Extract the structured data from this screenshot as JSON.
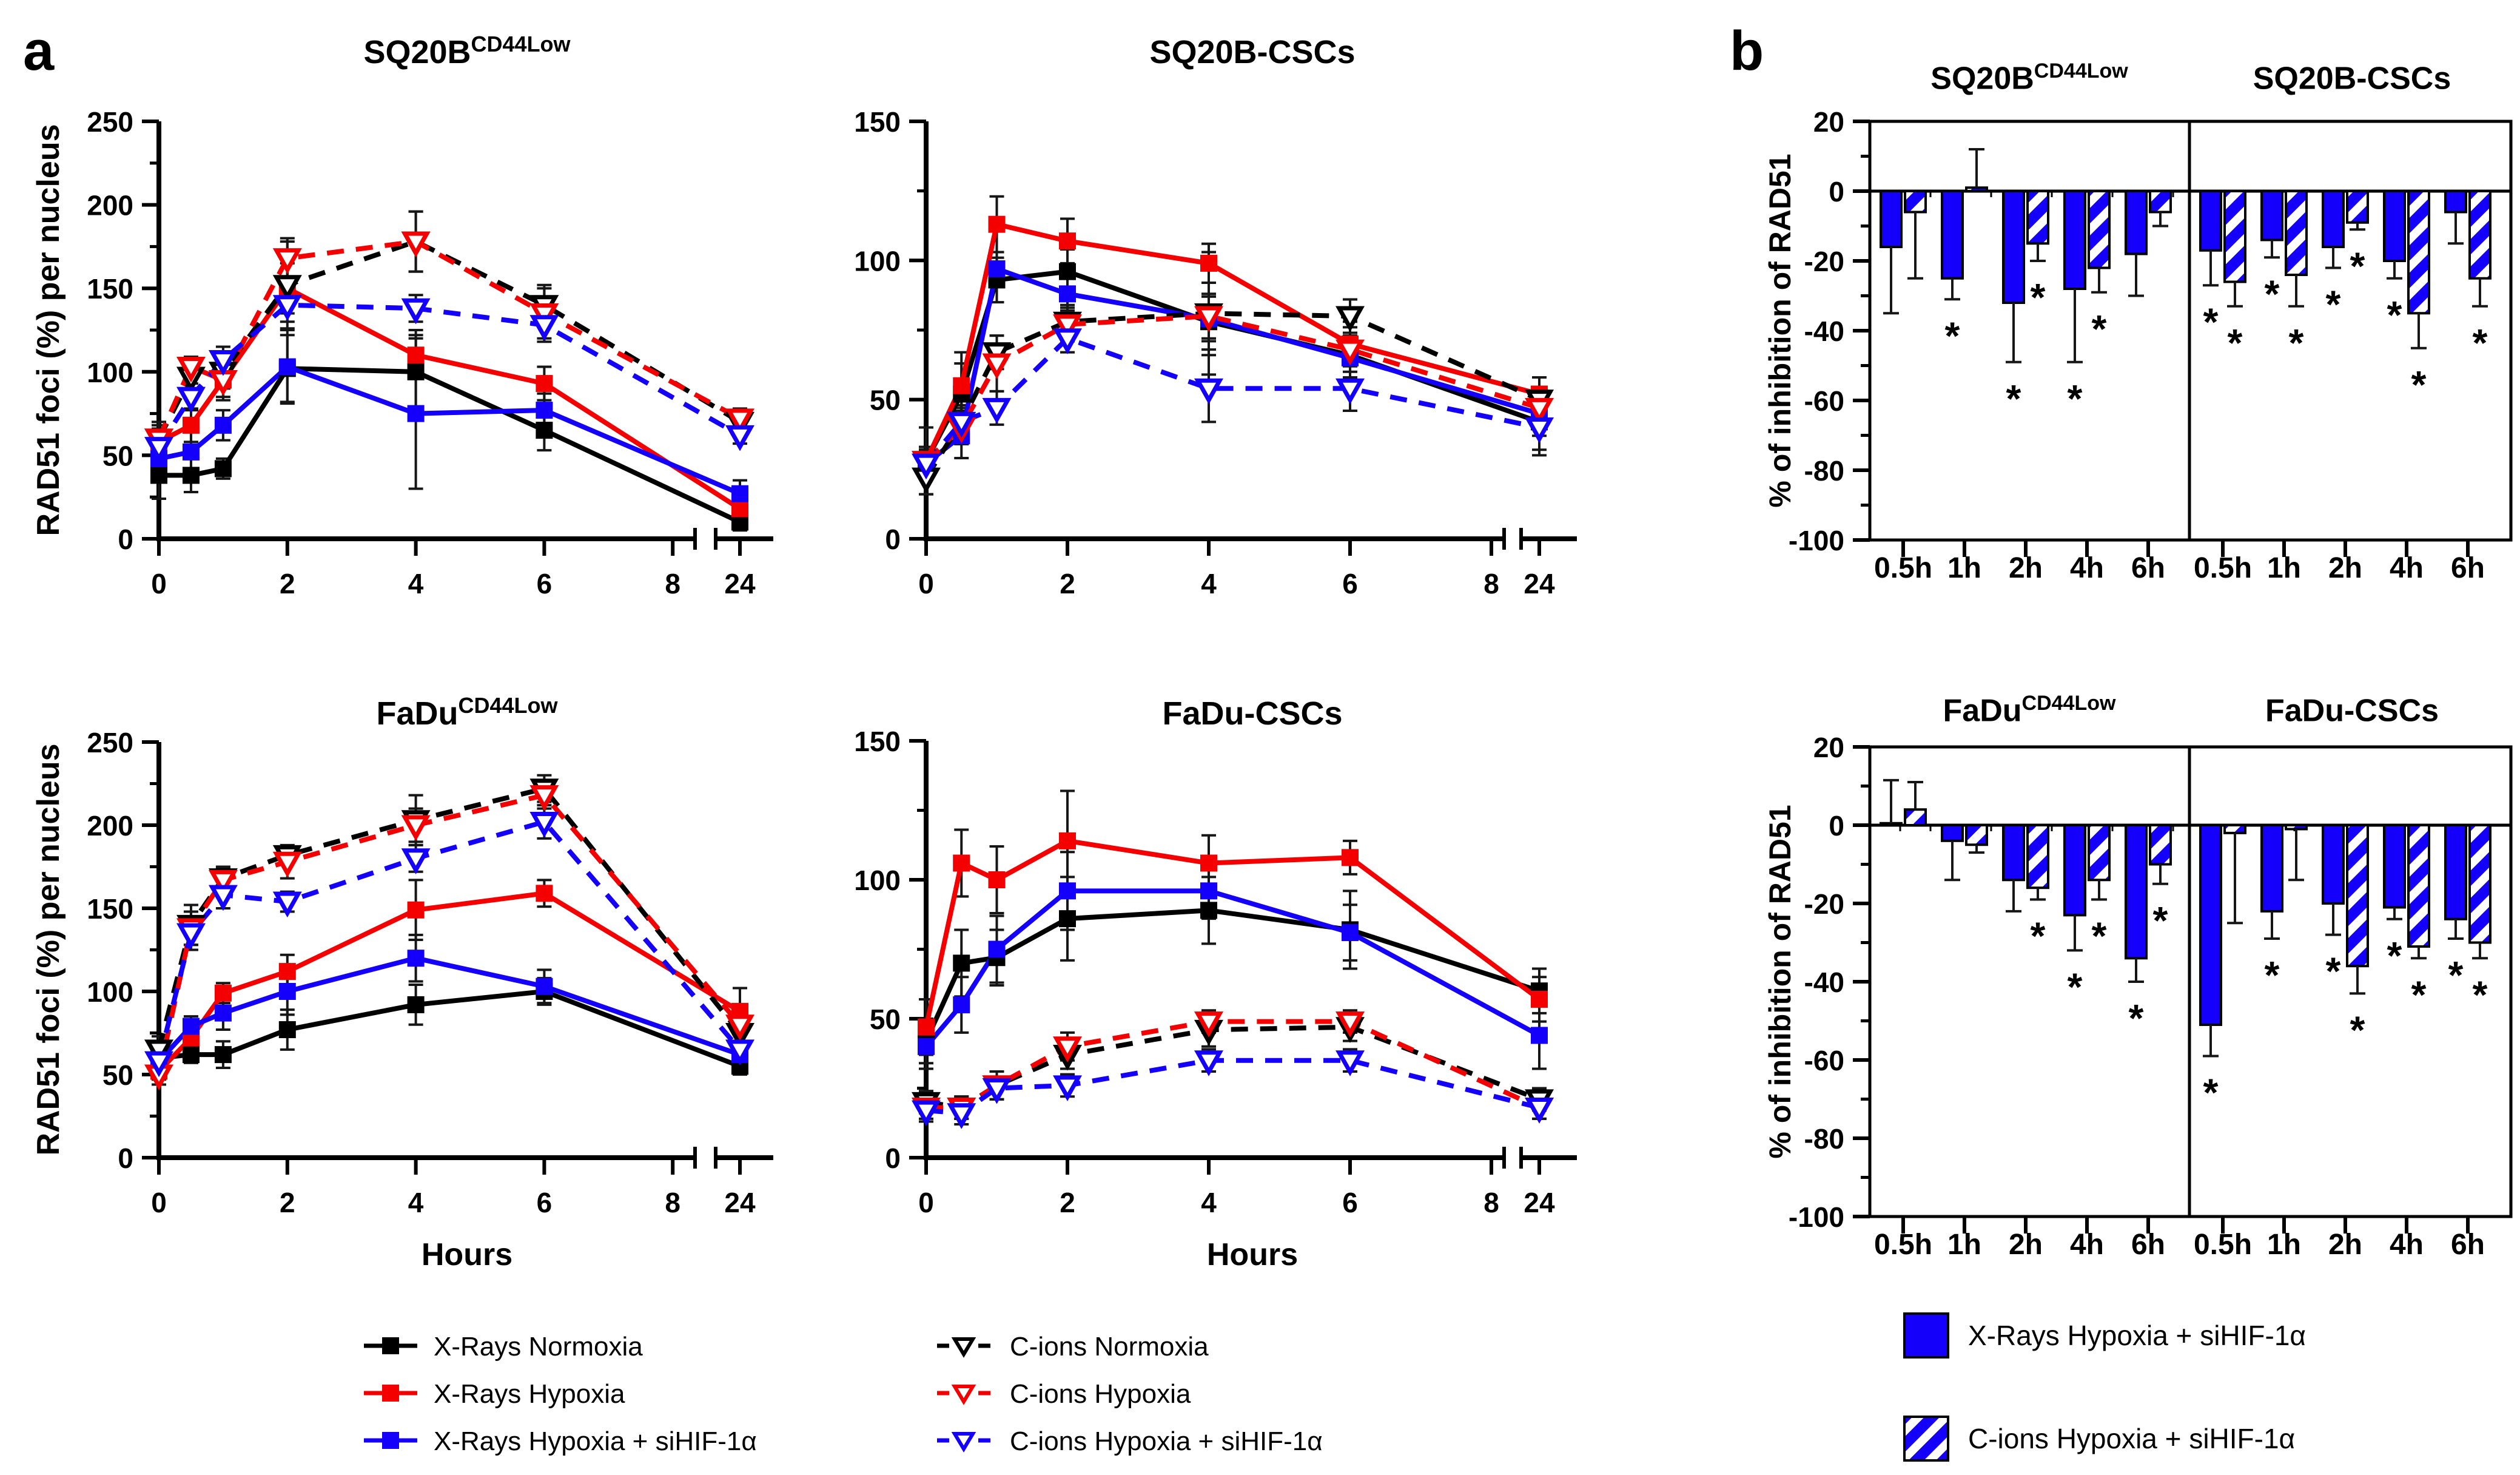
{
  "panels": {
    "a": {
      "label": "a"
    },
    "b": {
      "label": "b"
    }
  },
  "colors": {
    "black": "#000000",
    "red": "#f40000",
    "blue": "#1400fa"
  },
  "sig_marker": "*",
  "legend_a": {
    "items": [
      {
        "label": "X-Rays Normoxia",
        "color": "black",
        "dash": false,
        "marker": "square"
      },
      {
        "label": "X-Rays Hypoxia",
        "color": "red",
        "dash": false,
        "marker": "square"
      },
      {
        "label": "X-Rays Hypoxia + siHIF-1α",
        "color": "blue",
        "dash": false,
        "marker": "square"
      },
      {
        "label": "C-ions Normoxia",
        "color": "black",
        "dash": true,
        "marker": "triangle"
      },
      {
        "label": "C-ions Hypoxia",
        "color": "red",
        "dash": true,
        "marker": "triangle"
      },
      {
        "label": "C-ions Hypoxia + siHIF-1α",
        "color": "blue",
        "dash": true,
        "marker": "triangle"
      }
    ]
  },
  "legend_b": {
    "items": [
      {
        "label": "X-Rays Hypoxia + siHIF-1α",
        "pattern": "solid"
      },
      {
        "label": "C-ions Hypoxia + siHIF-1α",
        "pattern": "hatched"
      }
    ]
  },
  "chart_data": [
    {
      "type": "line",
      "title": "SQ20B",
      "title_sup": "CD44Low",
      "ylabel": "RAD51 foci (%) per nucleus",
      "xlabel": "",
      "y_min": 0,
      "y_max": 250,
      "y_ticks": [
        0,
        50,
        100,
        150,
        200,
        250
      ],
      "x_ticks": [
        0,
        2,
        4,
        6,
        8,
        24
      ],
      "x": [
        0,
        0.5,
        1,
        2,
        4,
        6,
        24
      ],
      "series": [
        {
          "name": "X-Rays Normoxia",
          "color": "black",
          "dash": false,
          "marker": "square",
          "values": [
            38,
            38,
            42,
            102,
            100,
            65,
            10
          ],
          "errors": [
            14,
            10,
            6,
            20,
            25,
            12,
            5
          ]
        },
        {
          "name": "X-Rays Hypoxia",
          "color": "red",
          "dash": false,
          "marker": "square",
          "values": [
            58,
            68,
            95,
            150,
            110,
            93,
            18
          ],
          "errors": [
            8,
            10,
            12,
            15,
            12,
            10,
            6
          ]
        },
        {
          "name": "X-Rays Hypoxia + siHIF-1α",
          "color": "blue",
          "dash": false,
          "marker": "square",
          "values": [
            48,
            52,
            68,
            103,
            75,
            77,
            27
          ],
          "errors": [
            6,
            12,
            9,
            22,
            45,
            10,
            8
          ]
        },
        {
          "name": "C-ions Normoxia",
          "color": "black",
          "dash": true,
          "marker": "triangle",
          "values": [
            60,
            97,
            100,
            152,
            178,
            140,
            70
          ],
          "errors": [
            10,
            8,
            10,
            26,
            18,
            12,
            6
          ]
        },
        {
          "name": "C-ions Hypoxia",
          "color": "red",
          "dash": true,
          "marker": "triangle",
          "values": [
            60,
            103,
            95,
            168,
            178,
            135,
            72
          ],
          "errors": [
            8,
            6,
            10,
            12,
            18,
            15,
            6
          ]
        },
        {
          "name": "C-ions Hypoxia + siHIF-1α",
          "color": "blue",
          "dash": true,
          "marker": "triangle",
          "values": [
            55,
            85,
            107,
            140,
            138,
            128,
            62
          ],
          "errors": [
            8,
            8,
            8,
            10,
            8,
            10,
            5
          ]
        }
      ]
    },
    {
      "type": "line",
      "title": "SQ20B-CSCs",
      "title_sup": "",
      "ylabel": "RAD51 foci (%) per nucleus",
      "xlabel": "",
      "y_min": 0,
      "y_max": 150,
      "y_ticks": [
        0,
        50,
        100,
        150
      ],
      "x_ticks": [
        0,
        2,
        4,
        6,
        8,
        24
      ],
      "x": [
        0,
        0.5,
        1,
        2,
        4,
        6,
        24
      ],
      "series": [
        {
          "name": "X-Rays Normoxia",
          "color": "black",
          "dash": false,
          "marker": "square",
          "values": [
            28,
            52,
            93,
            96,
            78,
            66,
            42
          ],
          "errors": [
            12,
            15,
            8,
            8,
            10,
            8,
            10
          ]
        },
        {
          "name": "X-Rays Hypoxia",
          "color": "red",
          "dash": false,
          "marker": "square",
          "values": [
            28,
            55,
            113,
            107,
            99,
            70,
            52
          ],
          "errors": [
            5,
            8,
            10,
            8,
            7,
            8,
            6
          ]
        },
        {
          "name": "X-Rays Hypoxia + siHIF-1α",
          "color": "blue",
          "dash": false,
          "marker": "square",
          "values": [
            27,
            37,
            97,
            88,
            79,
            65,
            45
          ],
          "errors": [
            5,
            8,
            6,
            6,
            8,
            8,
            8
          ]
        },
        {
          "name": "C-ions Normoxia",
          "color": "black",
          "dash": true,
          "marker": "triangle",
          "values": [
            22,
            42,
            67,
            78,
            81,
            80,
            50
          ],
          "errors": [
            6,
            8,
            6,
            6,
            22,
            6,
            8
          ]
        },
        {
          "name": "C-ions Hypoxia",
          "color": "red",
          "dash": true,
          "marker": "triangle",
          "values": [
            28,
            40,
            63,
            77,
            80,
            68,
            47
          ],
          "errors": [
            5,
            6,
            10,
            6,
            8,
            8,
            6
          ]
        },
        {
          "name": "C-ions Hypoxia + siHIF-1α",
          "color": "blue",
          "dash": true,
          "marker": "triangle",
          "values": [
            27,
            42,
            47,
            72,
            54,
            54,
            40
          ],
          "errors": [
            5,
            6,
            6,
            5,
            12,
            8,
            10
          ]
        }
      ]
    },
    {
      "type": "line",
      "title": "FaDu",
      "title_sup": "CD44Low",
      "ylabel": "RAD51 foci (%) per nucleus",
      "xlabel": "Hours",
      "y_min": 0,
      "y_max": 250,
      "y_ticks": [
        0,
        50,
        100,
        150,
        200,
        250
      ],
      "x_ticks": [
        0,
        2,
        4,
        6,
        8,
        24
      ],
      "x": [
        0,
        0.5,
        1,
        2,
        4,
        6,
        24
      ],
      "series": [
        {
          "name": "X-Rays Normoxia",
          "color": "black",
          "dash": false,
          "marker": "square",
          "values": [
            60,
            62,
            62,
            77,
            92,
            100,
            55
          ],
          "errors": [
            10,
            5,
            8,
            12,
            12,
            8,
            5
          ]
        },
        {
          "name": "X-Rays Hypoxia",
          "color": "red",
          "dash": false,
          "marker": "square",
          "values": [
            52,
            72,
            99,
            112,
            149,
            159,
            88
          ],
          "errors": [
            5,
            8,
            6,
            10,
            18,
            8,
            14
          ]
        },
        {
          "name": "X-Rays Hypoxia + siHIF-1α",
          "color": "blue",
          "dash": false,
          "marker": "square",
          "values": [
            58,
            79,
            87,
            100,
            120,
            103,
            62
          ],
          "errors": [
            8,
            6,
            10,
            14,
            14,
            10,
            5
          ]
        },
        {
          "name": "C-ions Normoxia",
          "color": "black",
          "dash": true,
          "marker": "triangle",
          "values": [
            65,
            140,
            168,
            182,
            203,
            222,
            75
          ],
          "errors": [
            8,
            12,
            6,
            5,
            15,
            8,
            6
          ]
        },
        {
          "name": "C-ions Hypoxia",
          "color": "red",
          "dash": true,
          "marker": "triangle",
          "values": [
            50,
            138,
            167,
            178,
            200,
            218,
            80
          ],
          "errors": [
            6,
            10,
            8,
            10,
            10,
            8,
            10
          ]
        },
        {
          "name": "C-ions Hypoxia + siHIF-1α",
          "color": "blue",
          "dash": true,
          "marker": "triangle",
          "values": [
            58,
            135,
            158,
            154,
            180,
            202,
            65
          ],
          "errors": [
            6,
            10,
            8,
            6,
            8,
            10,
            5
          ]
        }
      ]
    },
    {
      "type": "line",
      "title": "FaDu-CSCs",
      "title_sup": "",
      "ylabel": "RAD51 foci (%) per nucleus",
      "xlabel": "Hours",
      "y_min": 0,
      "y_max": 150,
      "y_ticks": [
        0,
        50,
        100,
        150
      ],
      "x_ticks": [
        0,
        2,
        4,
        6,
        8,
        24
      ],
      "x": [
        0,
        0.5,
        1,
        2,
        4,
        6,
        24
      ],
      "series": [
        {
          "name": "X-Rays Normoxia",
          "color": "black",
          "dash": false,
          "marker": "square",
          "values": [
            42,
            70,
            72,
            86,
            89,
            82,
            60
          ],
          "errors": [
            8,
            12,
            10,
            15,
            12,
            14,
            8
          ]
        },
        {
          "name": "X-Rays Hypoxia",
          "color": "red",
          "dash": false,
          "marker": "square",
          "values": [
            47,
            106,
            100,
            114,
            106,
            108,
            57
          ],
          "errors": [
            10,
            12,
            12,
            18,
            10,
            6,
            8
          ]
        },
        {
          "name": "X-Rays Hypoxia + siHIF-1α",
          "color": "blue",
          "dash": false,
          "marker": "square",
          "values": [
            40,
            55,
            75,
            96,
            96,
            81,
            44
          ],
          "errors": [
            8,
            10,
            12,
            14,
            10,
            10,
            12
          ]
        },
        {
          "name": "C-ions Normoxia",
          "color": "black",
          "dash": true,
          "marker": "triangle",
          "values": [
            20,
            18,
            26,
            37,
            46,
            47,
            21
          ],
          "errors": [
            4,
            4,
            5,
            5,
            6,
            5,
            4
          ]
        },
        {
          "name": "C-ions Hypoxia",
          "color": "red",
          "dash": true,
          "marker": "triangle",
          "values": [
            18,
            18,
            26,
            40,
            49,
            49,
            18
          ],
          "errors": [
            4,
            4,
            5,
            5,
            4,
            4,
            4
          ]
        },
        {
          "name": "C-ions Hypoxia + siHIF-1α",
          "color": "blue",
          "dash": true,
          "marker": "triangle",
          "values": [
            17,
            16,
            25,
            26,
            35,
            35,
            18
          ],
          "errors": [
            4,
            4,
            4,
            4,
            4,
            4,
            4
          ]
        }
      ]
    },
    {
      "type": "bar",
      "ylabel": "% of inhibition of RAD51",
      "y_min": -100,
      "y_max": 20,
      "y_ticks": [
        20,
        0,
        -20,
        -40,
        -60,
        -80,
        -100
      ],
      "categories": [
        "0.5h",
        "1h",
        "2h",
        "4h",
        "6h"
      ],
      "groups": [
        {
          "title": "SQ20B",
          "title_sup": "CD44Low",
          "series": [
            {
              "name": "X-Rays Hypoxia + siHIF-1α",
              "pattern": "solid",
              "values": [
                -16,
                -25,
                -32,
                -28,
                -18
              ],
              "errors": [
                19,
                6,
                17,
                21,
                12
              ],
              "sig": [
                0,
                1,
                1,
                1,
                0
              ]
            },
            {
              "name": "C-ions Hypoxia + siHIF-1α",
              "pattern": "hatched",
              "values": [
                -6,
                1,
                -15,
                -22,
                -6
              ],
              "errors": [
                19,
                11,
                5,
                7,
                4
              ],
              "sig": [
                0,
                0,
                1,
                1,
                0
              ]
            }
          ]
        },
        {
          "title": "SQ20B-CSCs",
          "title_sup": "",
          "series": [
            {
              "name": "X-Rays Hypoxia + siHIF-1α",
              "pattern": "solid",
              "values": [
                -17,
                -14,
                -16,
                -20,
                -6
              ],
              "errors": [
                10,
                5,
                6,
                5,
                9
              ],
              "sig": [
                1,
                1,
                1,
                1,
                0
              ]
            },
            {
              "name": "C-ions Hypoxia + siHIF-1α",
              "pattern": "hatched",
              "values": [
                -26,
                -24,
                -9,
                -35,
                -25
              ],
              "errors": [
                7,
                9,
                2,
                10,
                8
              ],
              "sig": [
                1,
                1,
                1,
                1,
                1
              ]
            }
          ]
        }
      ]
    },
    {
      "type": "bar",
      "ylabel": "% of inhibition of RAD51",
      "y_min": -100,
      "y_max": 20,
      "y_ticks": [
        20,
        0,
        -20,
        -40,
        -60,
        -80,
        -100
      ],
      "categories": [
        "0.5h",
        "1h",
        "2h",
        "4h",
        "6h"
      ],
      "groups": [
        {
          "title": "FaDu",
          "title_sup": "CD44Low",
          "series": [
            {
              "name": "X-Rays Hypoxia + siHIF-1α",
              "pattern": "solid",
              "values": [
                0.5,
                -4,
                -14,
                -23,
                -34
              ],
              "errors": [
                11,
                10,
                8,
                9,
                6
              ],
              "sig": [
                0,
                0,
                0,
                1,
                1
              ]
            },
            {
              "name": "C-ions Hypoxia + siHIF-1α",
              "pattern": "hatched",
              "values": [
                4,
                -5,
                -16,
                -14,
                -10
              ],
              "errors": [
                7,
                2,
                3,
                5,
                5
              ],
              "sig": [
                0,
                0,
                1,
                1,
                1
              ]
            }
          ]
        },
        {
          "title": "FaDu-CSCs",
          "title_sup": "",
          "series": [
            {
              "name": "X-Rays Hypoxia + siHIF-1α",
              "pattern": "solid",
              "values": [
                -51,
                -22,
                -20,
                -21,
                -24
              ],
              "errors": [
                8,
                7,
                8,
                3,
                5
              ],
              "sig": [
                1,
                1,
                1,
                1,
                1
              ]
            },
            {
              "name": "C-ions Hypoxia + siHIF-1α",
              "pattern": "hatched",
              "values": [
                -2,
                -1,
                -36,
                -31,
                -30
              ],
              "errors": [
                23,
                13,
                7,
                3,
                4
              ],
              "sig": [
                0,
                0,
                1,
                1,
                1
              ]
            }
          ]
        }
      ]
    }
  ]
}
